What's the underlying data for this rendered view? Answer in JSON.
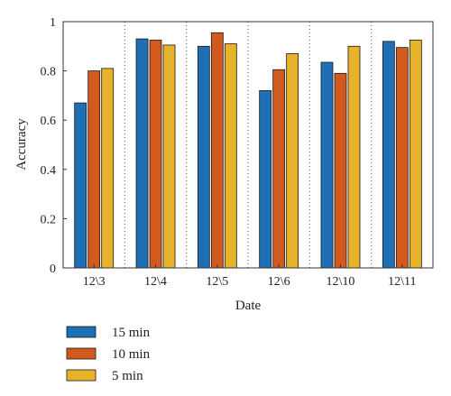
{
  "chart_data": {
    "type": "bar",
    "xlabel": "Date",
    "ylabel": "Accuracy",
    "ylim": [
      0,
      1
    ],
    "yticks": [
      0,
      0.2,
      0.4,
      0.6,
      0.8,
      1
    ],
    "ytick_labels": [
      "0",
      "0.2",
      "0.4",
      "0.6",
      "0.8",
      "1"
    ],
    "categories": [
      "12\\3",
      "12\\4",
      "12\\5",
      "12\\6",
      "12\\10",
      "12\\11"
    ],
    "series": [
      {
        "name": "15 min",
        "color": "#1f6fb4",
        "values": [
          0.67,
          0.93,
          0.9,
          0.72,
          0.835,
          0.92
        ]
      },
      {
        "name": "10 min",
        "color": "#d35a1f",
        "values": [
          0.8,
          0.925,
          0.955,
          0.805,
          0.79,
          0.895
        ]
      },
      {
        "name": "5 min",
        "color": "#e6b32a",
        "values": [
          0.81,
          0.905,
          0.91,
          0.87,
          0.9,
          0.925
        ]
      }
    ],
    "grid": "vertical-dotted",
    "legend_position": "bottom-left"
  }
}
